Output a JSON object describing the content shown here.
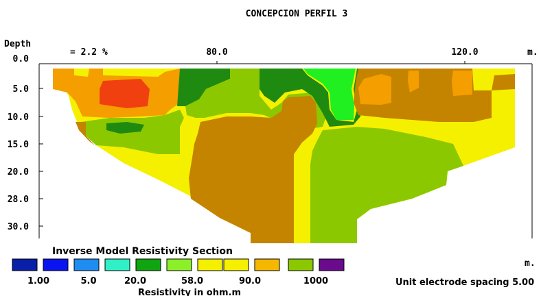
{
  "chart_data": {
    "type": "heatmap",
    "title": "CONCEPCION PERFIL 3",
    "depth_label": "Depth",
    "depth_ticks": [
      "0.0",
      "5.0",
      "10.0",
      "15.0",
      "20.0",
      "28.0",
      "30.0"
    ],
    "x_ticks": [
      "80.0",
      "120.0"
    ],
    "x_unit": "m.",
    "y_unit": "m.",
    "rms_error": "= 2.2 %",
    "section_title": "Inverse Model Resistivity Section",
    "legend_title": "Resistivity in ohm.m",
    "electrode_spacing": "Unit electrode spacing 5.00",
    "legend_colors": [
      "#0a1fa8",
      "#0a14f0",
      "#1e8cf0",
      "#30f0c8",
      "#10a510",
      "#8cf028",
      "#f5f000",
      "#f5f000",
      "#f5b800",
      "#8cc800",
      "#6a0a8c"
    ],
    "legend_labels": [
      "1.00",
      "5.0",
      "20.0",
      "58.0",
      "90.0",
      "1000"
    ],
    "zone_colors": {
      "yellow": "#f5f000",
      "orange": "#f59e00",
      "red": "#f04010",
      "brown": "#c48400",
      "light_green": "#8cc800",
      "dark_green": "#1e8a10",
      "bright_green": "#20f020"
    }
  }
}
